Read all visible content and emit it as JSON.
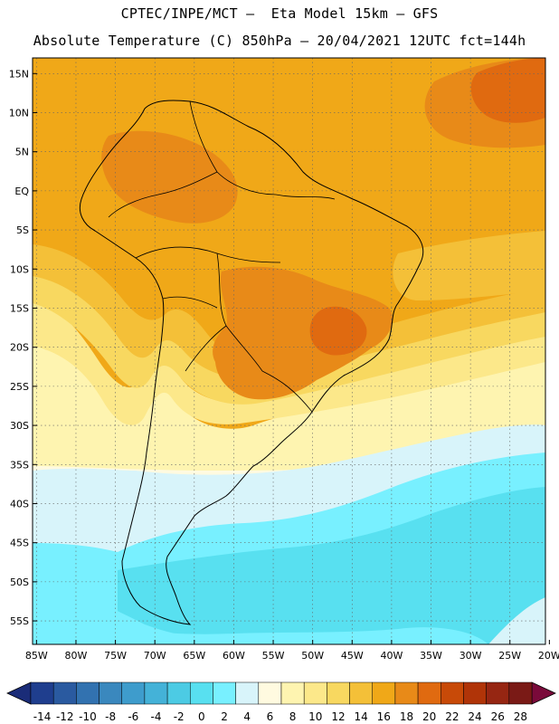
{
  "header": {
    "line1": "CPTEC/INPE/MCT –  Eta Model 15km – GFS",
    "line2": "Absolute Temperature (C) 850hPa – 20/04/2021 12UTC fct=144h"
  },
  "map": {
    "lat_labels": [
      "15N",
      "10N",
      "5N",
      "EQ",
      "5S",
      "10S",
      "15S",
      "20S",
      "25S",
      "30S",
      "35S",
      "40S",
      "45S",
      "50S",
      "55S"
    ],
    "lon_labels": [
      "85W",
      "80W",
      "75W",
      "70W",
      "65W",
      "60W",
      "55W",
      "50W",
      "45W",
      "40W",
      "35W",
      "30W",
      "25W",
      "20W"
    ],
    "lat_range": [
      17,
      -58
    ],
    "lon_range": [
      -85.5,
      -20.5
    ],
    "gridlines": true,
    "colors": {
      "t22": "#e06a10",
      "t20": "#e88a18",
      "t18": "#f0a818",
      "t16": "#f4c038",
      "t14": "#f8d860",
      "t12": "#fce88a",
      "t10": "#fef4b0",
      "t8": "#fffae0",
      "t6": "#d8f4fa",
      "t4": "#78f0ff",
      "t2": "#58e0f0"
    }
  },
  "colorbar": {
    "labels": [
      "-14",
      "-12",
      "-10",
      "-8",
      "-6",
      "-4",
      "-2",
      "0",
      "2",
      "4",
      "6",
      "8",
      "10",
      "12",
      "14",
      "16",
      "18",
      "20",
      "22",
      "24",
      "26",
      "28"
    ],
    "colors": [
      "#1f3e8e",
      "#2a5aa0",
      "#3272b0",
      "#3a88be",
      "#3e9ccc",
      "#44b2d8",
      "#4ccbe4",
      "#58e0f0",
      "#78f0ff",
      "#d8f4fa",
      "#fffae0",
      "#fef4b0",
      "#fce88a",
      "#f8d860",
      "#f4c038",
      "#f0a818",
      "#e88a18",
      "#e06a10",
      "#c84a08",
      "#b03408",
      "#962612",
      "#7a1a16"
    ],
    "low_arrow_color": "#1a2c78",
    "high_arrow_color": "#7a0a3a"
  }
}
